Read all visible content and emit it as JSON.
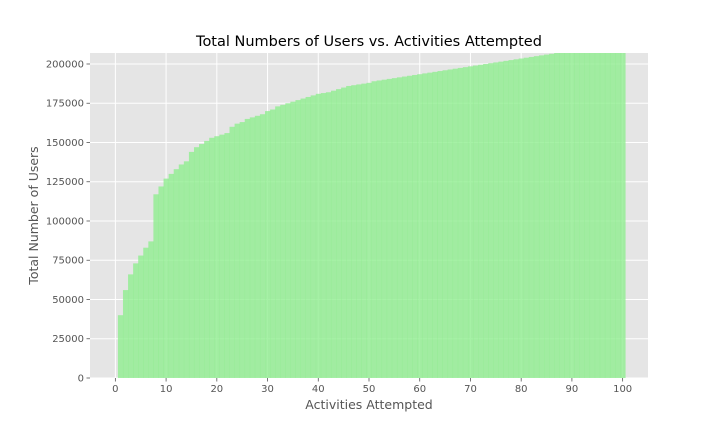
{
  "chart_data": {
    "type": "bar",
    "title": "Total Numbers of Users vs. Activities Attempted",
    "xlabel": "Activities Attempted",
    "ylabel": "Total Number of Users",
    "xlim": [
      -5,
      105
    ],
    "ylim": [
      0,
      207000
    ],
    "grid": true,
    "xticks": [
      0,
      10,
      20,
      30,
      40,
      50,
      60,
      70,
      80,
      90,
      100
    ],
    "yticks": [
      0,
      25000,
      50000,
      75000,
      100000,
      125000,
      150000,
      175000,
      200000
    ],
    "colors": {
      "bar": "#90ee90",
      "background": "#e5e5e5",
      "grid": "#ffffff",
      "text": "#555555"
    },
    "bar_opacity": 0.8,
    "x": [
      1,
      2,
      3,
      4,
      5,
      6,
      7,
      8,
      9,
      10,
      11,
      12,
      13,
      14,
      15,
      16,
      17,
      18,
      19,
      20,
      21,
      22,
      23,
      24,
      25,
      26,
      27,
      28,
      29,
      30,
      31,
      32,
      33,
      34,
      35,
      36,
      37,
      38,
      39,
      40,
      41,
      42,
      43,
      44,
      45,
      46,
      47,
      48,
      49,
      50,
      51,
      52,
      53,
      54,
      55,
      56,
      57,
      58,
      59,
      60,
      61,
      62,
      63,
      64,
      65,
      66,
      67,
      68,
      69,
      70,
      71,
      72,
      73,
      74,
      75,
      76,
      77,
      78,
      79,
      80,
      81,
      82,
      83,
      84,
      85,
      86,
      87,
      88,
      89,
      90,
      91,
      92,
      93,
      94,
      95,
      96,
      97,
      98,
      99,
      100
    ],
    "values": [
      40000,
      56000,
      66000,
      73000,
      78000,
      83000,
      87000,
      117000,
      122000,
      127000,
      130000,
      133000,
      136000,
      138000,
      144000,
      147000,
      149000,
      151000,
      153000,
      154000,
      155000,
      156000,
      160000,
      162000,
      163000,
      165000,
      166000,
      167000,
      168000,
      170000,
      171000,
      173000,
      174000,
      175000,
      176000,
      177000,
      178000,
      179000,
      180000,
      181000,
      181500,
      182000,
      183000,
      184000,
      185000,
      186000,
      186500,
      187000,
      187500,
      188000,
      189000,
      189500,
      190000,
      190500,
      191000,
      191500,
      192000,
      192500,
      193000,
      193500,
      194000,
      194500,
      195000,
      195500,
      196000,
      196500,
      197000,
      197500,
      198000,
      198500,
      199000,
      199500,
      200000,
      200500,
      201000,
      201500,
      202000,
      202500,
      203000,
      203500,
      204000,
      204500,
      205000,
      205500,
      206000,
      206500,
      207000,
      207500,
      208000,
      208500,
      209000,
      209500,
      210000,
      210500,
      211000,
      211500,
      212000,
      212500,
      213000,
      213500
    ]
  }
}
